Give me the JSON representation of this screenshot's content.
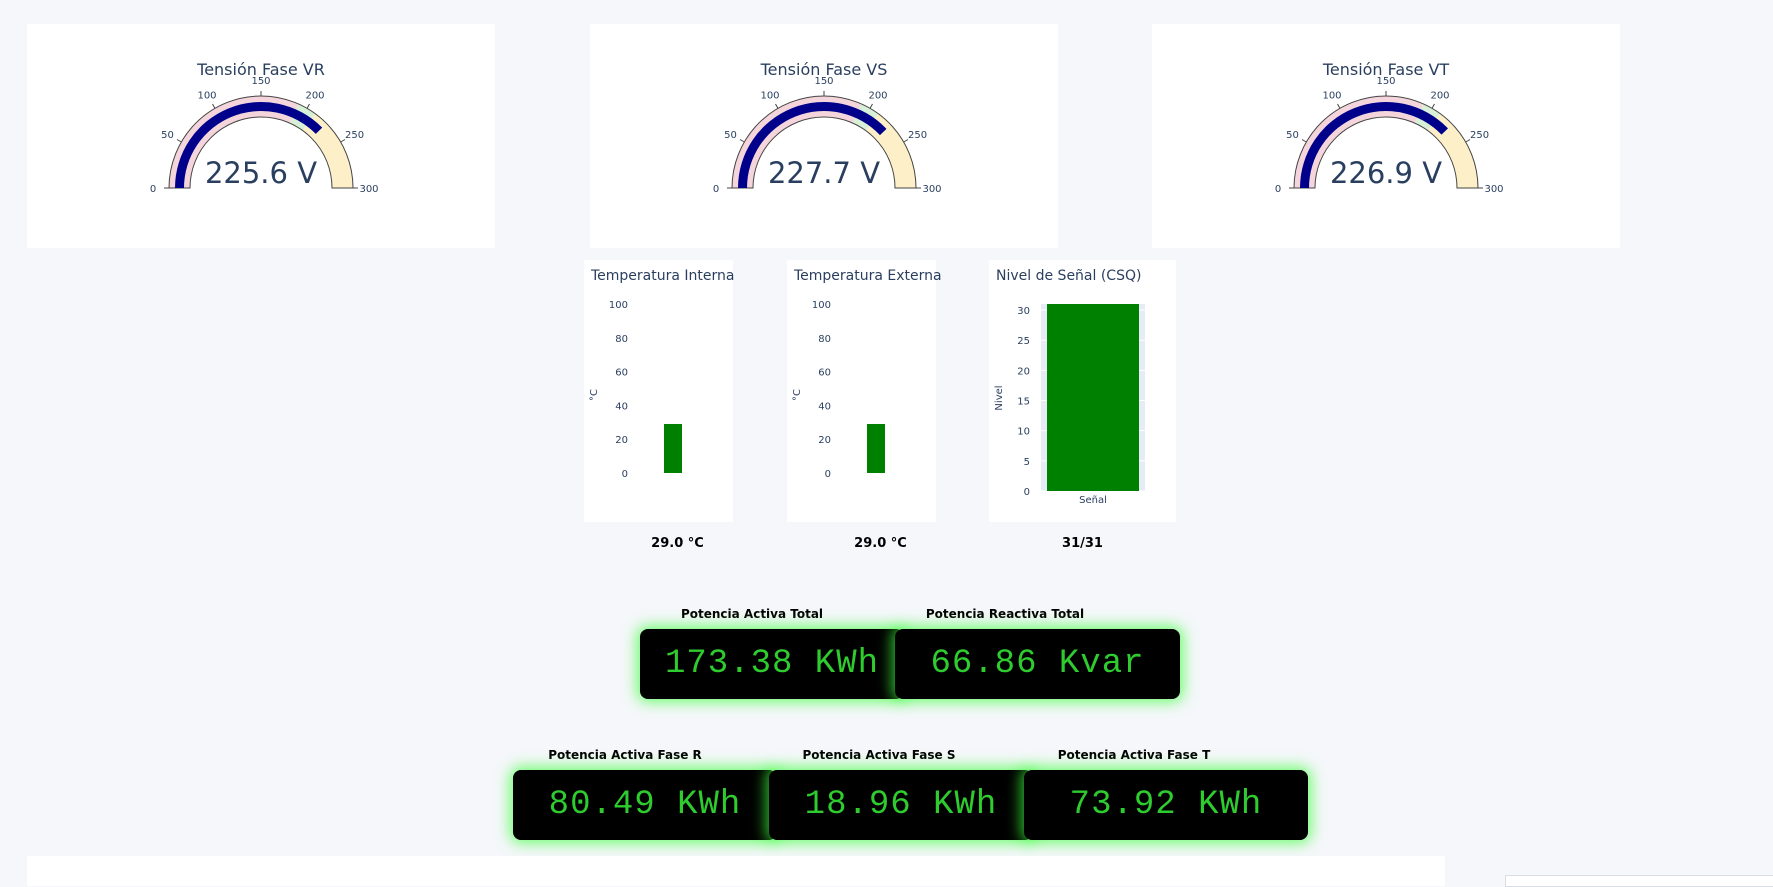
{
  "gauges": [
    {
      "title": "Tensión Fase VR",
      "value": 225.6,
      "display": "225.6 V"
    },
    {
      "title": "Tensión Fase VS",
      "value": 227.7,
      "display": "227.7 V"
    },
    {
      "title": "Tensión Fase VT",
      "value": 226.9,
      "display": "226.9 V"
    }
  ],
  "gauge_scale": {
    "min": 0,
    "max": 300,
    "ticks": [
      "0",
      "50",
      "100",
      "150",
      "200",
      "250",
      "300"
    ],
    "bar_color": "#00008b",
    "bands": [
      {
        "from": 0,
        "to": 190,
        "color": "#f5d5dc"
      },
      {
        "from": 190,
        "to": 210,
        "color": "#d8f0d8"
      },
      {
        "from": 210,
        "to": 300,
        "color": "#fdf0c8"
      }
    ]
  },
  "temp_interna": {
    "title": "Temperatura Interna",
    "ylabel": "°C",
    "value": 29.0,
    "readout": "29.0 °C",
    "ticks": [
      "0",
      "20",
      "40",
      "60",
      "80",
      "100"
    ],
    "bar_color": "#008000"
  },
  "temp_externa": {
    "title": "Temperatura Externa",
    "ylabel": "°C",
    "value": 29.0,
    "readout": "29.0 °C",
    "ticks": [
      "0",
      "20",
      "40",
      "60",
      "80",
      "100"
    ],
    "bar_color": "#008000"
  },
  "signal": {
    "title": "Nivel de Señal (CSQ)",
    "ylabel": "Nivel",
    "xlabel": "Señal",
    "value": 31,
    "readout": "31/31",
    "ticks": [
      "0",
      "5",
      "10",
      "15",
      "20",
      "25",
      "30"
    ],
    "bar_color": "#008000"
  },
  "potencia_total": {
    "activa_label": "Potencia Activa Total",
    "activa_value": "173.38 KWh",
    "reactiva_label": "Potencia Reactiva Total",
    "reactiva_value": "66.86 Kvar"
  },
  "potencia_fases": {
    "r_label": "Potencia Activa Fase R",
    "r_value": "80.49 KWh",
    "s_label": "Potencia Activa Fase S",
    "s_value": "18.96 KWh",
    "t_label": "Potencia Activa Fase T",
    "t_value": "73.92 KWh"
  },
  "chart_data": [
    {
      "type": "bar",
      "title": "Temperatura Interna",
      "ylabel": "°C",
      "categories": [
        ""
      ],
      "values": [
        29.0
      ],
      "ylim": [
        0,
        100
      ]
    },
    {
      "type": "bar",
      "title": "Temperatura Externa",
      "ylabel": "°C",
      "categories": [
        ""
      ],
      "values": [
        29.0
      ],
      "ylim": [
        0,
        100
      ]
    },
    {
      "type": "bar",
      "title": "Nivel de Señal (CSQ)",
      "ylabel": "Nivel",
      "xlabel": "Señal",
      "categories": [
        "Señal"
      ],
      "values": [
        31
      ],
      "ylim": [
        0,
        31
      ]
    }
  ]
}
